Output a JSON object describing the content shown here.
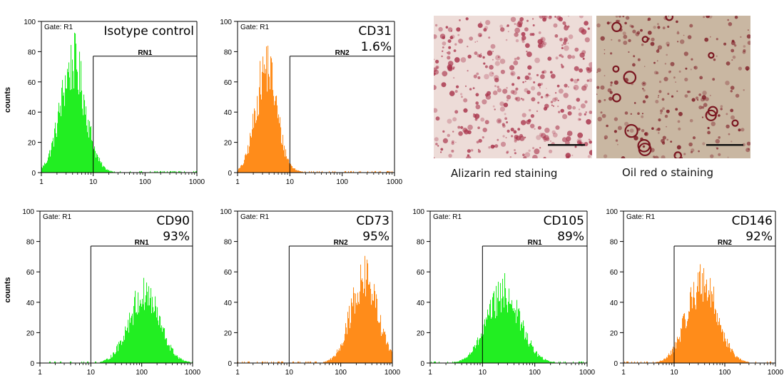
{
  "chart_data": [
    {
      "type": "histogram",
      "id": "isotype",
      "title": "Isotype control",
      "gate_label": "Gate: R1",
      "marker_label": "RN1",
      "percent_label": "",
      "ylabel": "counts",
      "xscale": "log",
      "xlim": [
        1,
        1000
      ],
      "ylim": [
        0,
        100
      ],
      "xticks": [
        "1",
        "10",
        "100",
        "1000"
      ],
      "yticks": [
        "0",
        "20",
        "40",
        "60",
        "80",
        "100"
      ],
      "marker_range": [
        10,
        1000
      ],
      "marker_y": 77,
      "color": "#22ee22",
      "peak_x": 4,
      "peak_count": 70,
      "width_decades": 0.24
    },
    {
      "type": "histogram",
      "id": "cd31",
      "title": "CD31",
      "gate_label": "Gate: R1",
      "marker_label": "RN2",
      "percent_label": "1.6%",
      "ylabel": "",
      "xscale": "log",
      "xlim": [
        1,
        1000
      ],
      "ylim": [
        0,
        100
      ],
      "xticks": [
        "1",
        "10",
        "100",
        "1000"
      ],
      "yticks": [
        "0",
        "20",
        "40",
        "60",
        "80",
        "100"
      ],
      "marker_range": [
        10,
        1000
      ],
      "marker_y": 77,
      "color": "#ff8c1a",
      "peak_x": 3.5,
      "peak_count": 68,
      "width_decades": 0.2
    },
    {
      "type": "histogram",
      "id": "cd90",
      "title": "CD90",
      "gate_label": "Gate: R1",
      "marker_label": "RN1",
      "percent_label": "93%",
      "ylabel": "counts",
      "xscale": "log",
      "xlim": [
        1,
        1000
      ],
      "ylim": [
        0,
        100
      ],
      "xticks": [
        "1",
        "10",
        "100",
        "1000"
      ],
      "yticks": [
        "0",
        "20",
        "40",
        "60",
        "80",
        "100"
      ],
      "marker_range": [
        10,
        1000
      ],
      "marker_y": 77,
      "color": "#22ee22",
      "peak_x": 110,
      "peak_count": 44,
      "width_decades": 0.3
    },
    {
      "type": "histogram",
      "id": "cd73",
      "title": "CD73",
      "gate_label": "Gate: R1",
      "marker_label": "RN2",
      "percent_label": "95%",
      "ylabel": "",
      "xscale": "log",
      "xlim": [
        1,
        1000
      ],
      "ylim": [
        0,
        100
      ],
      "xticks": [
        "1",
        "10",
        "100",
        "1000"
      ],
      "yticks": [
        "0",
        "20",
        "40",
        "60",
        "80",
        "100"
      ],
      "marker_range": [
        10,
        1000
      ],
      "marker_y": 77,
      "color": "#ff8c1a",
      "peak_x": 280,
      "peak_count": 54,
      "width_decades": 0.26
    },
    {
      "type": "histogram",
      "id": "cd105",
      "title": "CD105",
      "gate_label": "Gate: R1",
      "marker_label": "RN1",
      "percent_label": "89%",
      "ylabel": "",
      "xscale": "log",
      "xlim": [
        1,
        1000
      ],
      "ylim": [
        0,
        100
      ],
      "xticks": [
        "1",
        "10",
        "100",
        "1000"
      ],
      "yticks": [
        "0",
        "20",
        "40",
        "60",
        "80",
        "100"
      ],
      "marker_range": [
        10,
        1000
      ],
      "marker_y": 77,
      "color": "#22ee22",
      "peak_x": 25,
      "peak_count": 44,
      "width_decades": 0.32
    },
    {
      "type": "histogram",
      "id": "cd146",
      "title": "CD146",
      "gate_label": "Gate: R1",
      "marker_label": "RN2",
      "percent_label": "92%",
      "ylabel": "",
      "xscale": "log",
      "xlim": [
        1,
        1000
      ],
      "ylim": [
        0,
        100
      ],
      "xticks": [
        "1",
        "10",
        "100",
        "1000"
      ],
      "yticks": [
        "0",
        "20",
        "40",
        "60",
        "80",
        "100"
      ],
      "marker_range": [
        10,
        1000
      ],
      "marker_y": 77,
      "color": "#ff8c1a",
      "peak_x": 35,
      "peak_count": 52,
      "width_decades": 0.3
    }
  ],
  "photos": [
    {
      "caption": "Alizarin red staining",
      "colors": {
        "base": "#eddcd8",
        "stain": "#a8324a",
        "scale_bar": "#111111"
      }
    },
    {
      "caption": "Oil red o staining",
      "colors": {
        "base": "#c9b7a2",
        "stain": "#7a1620",
        "scale_bar": "#111111"
      }
    }
  ]
}
